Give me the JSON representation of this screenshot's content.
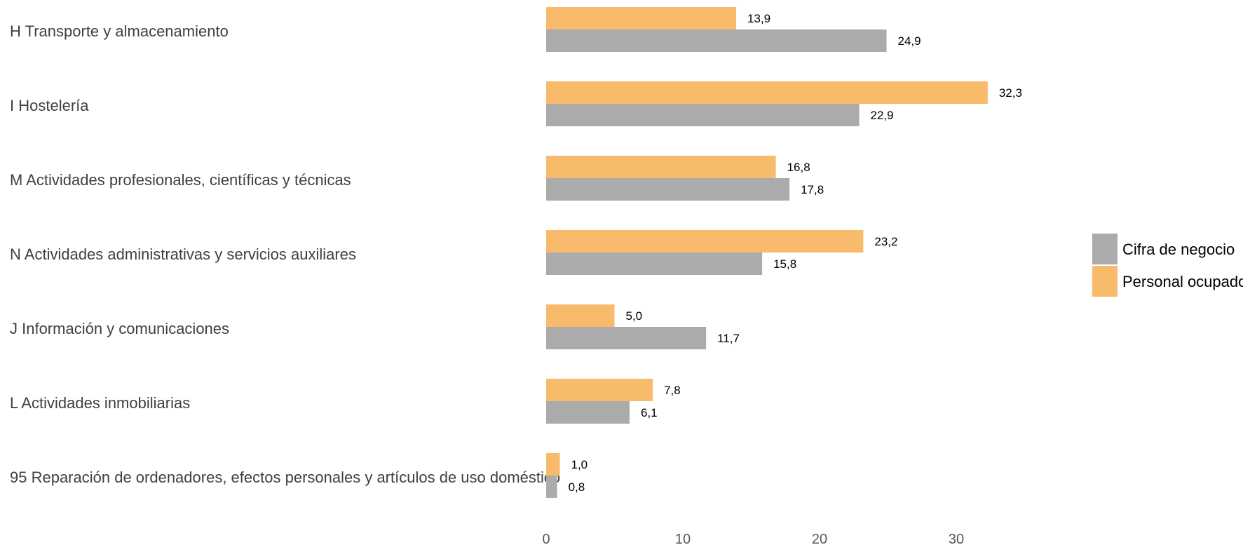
{
  "chart_data": {
    "type": "bar",
    "orientation": "horizontal",
    "categories": [
      "H Transporte y almacenamiento",
      "I Hostelería",
      "M Actividades profesionales, científicas y técnicas",
      "N Actividades administrativas y servicios auxiliares",
      "J Información y comunicaciones",
      "L Actividades inmobiliarias",
      "95 Reparación de ordenadores, efectos personales y artículos de uso doméstico"
    ],
    "series": [
      {
        "name": "Personal ocupado",
        "color": "#F8BB6C",
        "values": [
          13.9,
          32.3,
          16.8,
          23.2,
          5.0,
          7.8,
          1.0
        ],
        "labels": [
          "13,9",
          "32,3",
          "16,8",
          "23,2",
          "5,0",
          "7,8",
          "1,0"
        ]
      },
      {
        "name": "Cifra de negocio",
        "color": "#ABABAB",
        "values": [
          24.9,
          22.9,
          17.8,
          15.8,
          11.7,
          6.1,
          0.8
        ],
        "labels": [
          "24,9",
          "22,9",
          "17,8",
          "15,8",
          "11,7",
          "6,1",
          "0,8"
        ]
      }
    ],
    "xticks": [
      "0",
      "10",
      "20",
      "30"
    ],
    "xlim": [
      0,
      40
    ],
    "title": "",
    "xlabel": "",
    "ylabel": "",
    "grid": false,
    "legend": {
      "position": "right",
      "items": [
        "Cifra de negocio",
        "Personal ocupado"
      ]
    }
  }
}
